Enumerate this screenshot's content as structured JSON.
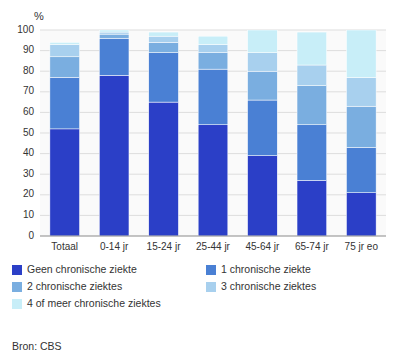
{
  "chart_data": {
    "type": "bar",
    "stacked": true,
    "y_label": "%",
    "categories": [
      "Totaal",
      "0-14 jr",
      "15-24 jr",
      "25-44 jr",
      "45-64 jr",
      "65-74 jr",
      "75 jr eo"
    ],
    "series": [
      {
        "name": "Geen chronische ziekte",
        "color": "#2b3fc7",
        "values": [
          52,
          78,
          65,
          54,
          39,
          27,
          21
        ]
      },
      {
        "name": "1 chronische ziekte",
        "color": "#4a80d4",
        "values": [
          25,
          18,
          24,
          27,
          27,
          27,
          22
        ]
      },
      {
        "name": "2 chronische ziektes",
        "color": "#7aaee0",
        "values": [
          10,
          2,
          5,
          8,
          14,
          19,
          20
        ]
      },
      {
        "name": "3 chronische ziektes",
        "color": "#a8d0ee",
        "values": [
          6,
          1,
          3,
          4,
          9,
          10,
          14
        ]
      },
      {
        "name": "4 of meer chronische ziektes",
        "color": "#c8eef8",
        "values": [
          1,
          1,
          2,
          4,
          11,
          16,
          23
        ]
      }
    ],
    "ylim": [
      0,
      100
    ],
    "yticks": [
      0,
      10,
      20,
      30,
      40,
      50,
      60,
      70,
      80,
      90,
      100
    ],
    "grid": true,
    "legend": "bottom",
    "annotations": [
      "Bron: CBS"
    ]
  }
}
